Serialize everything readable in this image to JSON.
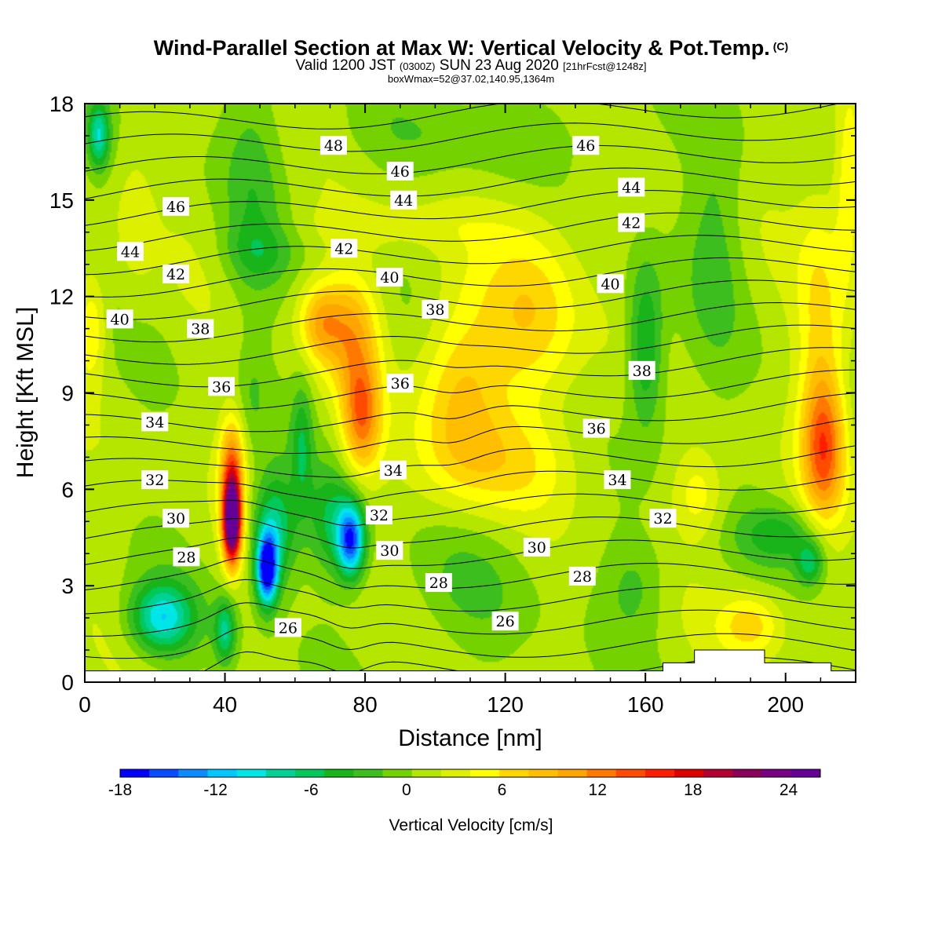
{
  "header": {
    "title": "Wind-Parallel Section at Max W: Vertical Velocity & Pot.Temp.",
    "copyright": "(C)",
    "valid_prefix": "Valid 1200 JST",
    "valid_utc": "(0300Z)",
    "valid_date": "SUN 23 Aug 2020",
    "forecast": "[21hrFcst@1248z]",
    "box_info": "boxWmax=52@37.02,140.95,1364m"
  },
  "chart_data": {
    "type": "heatmap",
    "title": "Wind-Parallel Section at Max W: Vertical Velocity & Pot.Temp.",
    "xlabel": "Distance [nm]",
    "ylabel": "Height [Kft MSL]",
    "xlim": [
      0,
      220
    ],
    "ylim": [
      0,
      18
    ],
    "xticks": [
      0,
      40,
      80,
      120,
      160,
      200
    ],
    "yticks": [
      0,
      3,
      6,
      9,
      12,
      15,
      18
    ],
    "colorbar": {
      "label": "Vertical Velocity [cm/s]",
      "ticks": [
        -18,
        -12,
        -6,
        0,
        6,
        12,
        18,
        24
      ],
      "range": [
        -18,
        26
      ],
      "colors": [
        "#0000ff",
        "#0a4cff",
        "#0a8cff",
        "#00c8ff",
        "#00e6e6",
        "#00d296",
        "#00c85a",
        "#19b419",
        "#3cbe1e",
        "#73d200",
        "#b4e600",
        "#dcf000",
        "#ffff00",
        "#ffd700",
        "#ffbe00",
        "#ffa500",
        "#ff7800",
        "#ff4b00",
        "#ff1e00",
        "#dc0000",
        "#b40032",
        "#8c005a",
        "#780082",
        "#640096"
      ]
    },
    "contour_field": "Potential temperature",
    "contour_labels": [
      {
        "value": "48",
        "x": 71,
        "y": 16.7
      },
      {
        "value": "46",
        "x": 143,
        "y": 16.7
      },
      {
        "value": "46",
        "x": 90,
        "y": 15.9
      },
      {
        "value": "46",
        "x": 26,
        "y": 14.8
      },
      {
        "value": "44",
        "x": 156,
        "y": 15.4
      },
      {
        "value": "44",
        "x": 91,
        "y": 15.0
      },
      {
        "value": "44",
        "x": 13,
        "y": 13.4
      },
      {
        "value": "42",
        "x": 156,
        "y": 14.3
      },
      {
        "value": "42",
        "x": 74,
        "y": 13.5
      },
      {
        "value": "42",
        "x": 26,
        "y": 12.7
      },
      {
        "value": "40",
        "x": 87,
        "y": 12.6
      },
      {
        "value": "40",
        "x": 150,
        "y": 12.4
      },
      {
        "value": "40",
        "x": 10,
        "y": 11.3
      },
      {
        "value": "38",
        "x": 100,
        "y": 11.6
      },
      {
        "value": "38",
        "x": 33,
        "y": 11.0
      },
      {
        "value": "38",
        "x": 159,
        "y": 9.7
      },
      {
        "value": "36",
        "x": 90,
        "y": 9.3
      },
      {
        "value": "36",
        "x": 39,
        "y": 9.2
      },
      {
        "value": "36",
        "x": 146,
        "y": 7.9
      },
      {
        "value": "34",
        "x": 20,
        "y": 8.1
      },
      {
        "value": "34",
        "x": 88,
        "y": 6.6
      },
      {
        "value": "34",
        "x": 152,
        "y": 6.3
      },
      {
        "value": "32",
        "x": 20,
        "y": 6.3
      },
      {
        "value": "32",
        "x": 84,
        "y": 5.2
      },
      {
        "value": "32",
        "x": 165,
        "y": 5.1
      },
      {
        "value": "30",
        "x": 26,
        "y": 5.1
      },
      {
        "value": "30",
        "x": 87,
        "y": 4.1
      },
      {
        "value": "30",
        "x": 129,
        "y": 4.2
      },
      {
        "value": "28",
        "x": 29,
        "y": 3.9
      },
      {
        "value": "28",
        "x": 101,
        "y": 3.1
      },
      {
        "value": "28",
        "x": 142,
        "y": 3.3
      },
      {
        "value": "26",
        "x": 58,
        "y": 1.7
      },
      {
        "value": "26",
        "x": 120,
        "y": 1.9
      }
    ],
    "terrain": [
      [
        0,
        0.35
      ],
      [
        165,
        0.35
      ],
      [
        165,
        0.6
      ],
      [
        174,
        0.6
      ],
      [
        174,
        1.0
      ],
      [
        194,
        1.0
      ],
      [
        194,
        0.6
      ],
      [
        213,
        0.6
      ],
      [
        213,
        0.35
      ],
      [
        220,
        0.35
      ]
    ],
    "w_features": [
      {
        "x": 42,
        "y": 5.0,
        "sx": 2.6,
        "sy": 1.3,
        "w": 28
      },
      {
        "x": 42,
        "y": 6.8,
        "sx": 3.5,
        "sy": 1.5,
        "w": 10
      },
      {
        "x": 52,
        "y": 3.5,
        "sx": 3.0,
        "sy": 1.1,
        "w": -19
      },
      {
        "x": 54,
        "y": 4.7,
        "sx": 6.0,
        "sy": 1.7,
        "w": -9
      },
      {
        "x": 76,
        "y": 4.4,
        "sx": 3.8,
        "sy": 1.1,
        "w": -15
      },
      {
        "x": 71,
        "y": 5.0,
        "sx": 7.0,
        "sy": 1.6,
        "w": -6
      },
      {
        "x": 22,
        "y": 2.0,
        "sx": 9.0,
        "sy": 1.1,
        "w": -11
      },
      {
        "x": 40,
        "y": 1.6,
        "sx": 3.0,
        "sy": 1.0,
        "w": -8
      },
      {
        "x": 62,
        "y": 7.4,
        "sx": 3.0,
        "sy": 2.0,
        "w": -5
      },
      {
        "x": 79,
        "y": 8.3,
        "sx": 5.5,
        "sy": 1.8,
        "w": 11
      },
      {
        "x": 76,
        "y": 11.0,
        "sx": 8.0,
        "sy": 1.8,
        "w": 8
      },
      {
        "x": 67,
        "y": 11.2,
        "sx": 6.0,
        "sy": 1.2,
        "w": 7
      },
      {
        "x": 107,
        "y": 9.0,
        "sx": 12.0,
        "sy": 2.8,
        "w": 7
      },
      {
        "x": 128,
        "y": 11.5,
        "sx": 14.0,
        "sy": 3.0,
        "w": 6
      },
      {
        "x": 120,
        "y": 6.8,
        "sx": 22.0,
        "sy": 1.6,
        "w": 4
      },
      {
        "x": 211,
        "y": 7.3,
        "sx": 6.0,
        "sy": 2.2,
        "w": 11
      },
      {
        "x": 210,
        "y": 11.0,
        "sx": 7.0,
        "sy": 4.5,
        "w": 5
      },
      {
        "x": 218,
        "y": 15.5,
        "sx": 4.0,
        "sy": 3.0,
        "w": 5
      },
      {
        "x": 2,
        "y": 11.0,
        "sx": 4.0,
        "sy": 1.6,
        "w": 5
      },
      {
        "x": 175,
        "y": 5.8,
        "sx": 7.0,
        "sy": 1.3,
        "w": 4
      },
      {
        "x": 190,
        "y": 1.8,
        "sx": 9.0,
        "sy": 1.0,
        "w": 6
      },
      {
        "x": 160,
        "y": 10.5,
        "sx": 5.0,
        "sy": 2.5,
        "w": -7
      },
      {
        "x": 157,
        "y": 3.0,
        "sx": 9.0,
        "sy": 1.5,
        "w": -3
      },
      {
        "x": 199,
        "y": 4.6,
        "sx": 12.0,
        "sy": 0.9,
        "w": -5
      },
      {
        "x": 207,
        "y": 3.7,
        "sx": 4.0,
        "sy": 0.7,
        "w": -7
      },
      {
        "x": 48,
        "y": 15.0,
        "sx": 8.0,
        "sy": 4.0,
        "w": -3
      },
      {
        "x": 48,
        "y": 9.0,
        "sx": 4.0,
        "sy": 1.5,
        "w": -2
      },
      {
        "x": 4,
        "y": 17.0,
        "sx": 3.0,
        "sy": 1.0,
        "w": -9
      },
      {
        "x": 110,
        "y": 17.0,
        "sx": 40.0,
        "sy": 1.2,
        "w": -2
      },
      {
        "x": 180,
        "y": 14.0,
        "sx": 8.0,
        "sy": 4.0,
        "w": -3
      },
      {
        "x": 50,
        "y": 13.4,
        "sx": 10.0,
        "sy": 0.9,
        "w": -3
      },
      {
        "x": 14,
        "y": 14.5,
        "sx": 6.0,
        "sy": 3.0,
        "w": 2
      },
      {
        "x": 88,
        "y": 14.2,
        "sx": 30.0,
        "sy": 0.8,
        "w": 2
      },
      {
        "x": 110,
        "y": 3.0,
        "sx": 20.0,
        "sy": 2.0,
        "w": -2
      },
      {
        "x": 165,
        "y": 8.5,
        "sx": 8.0,
        "sy": 2.0,
        "w": -1
      }
    ],
    "theta_levels": [
      25,
      26,
      27,
      28,
      29,
      30,
      31,
      32,
      33,
      34,
      35,
      36,
      37,
      38,
      39,
      40,
      41,
      42,
      43,
      44,
      45,
      46,
      47,
      48,
      49
    ]
  }
}
